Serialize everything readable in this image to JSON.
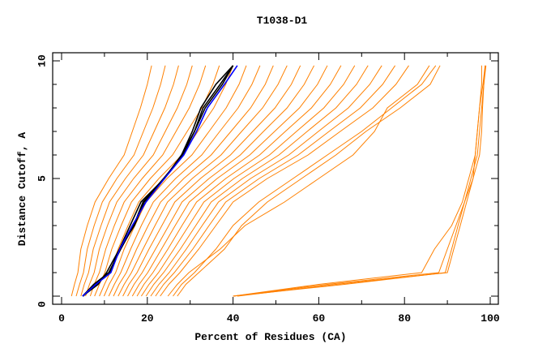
{
  "chart_data": {
    "type": "line",
    "title": "T1038-D1",
    "xlabel": "Percent of Residues (CA)",
    "ylabel": "Distance Cutoff, A",
    "xlim": [
      0,
      100
    ],
    "ylim": [
      0,
      10
    ],
    "xticks": [
      "0",
      "20",
      "40",
      "60",
      "80",
      "100"
    ],
    "yticks": [
      "0",
      "5",
      "10"
    ],
    "grid": false,
    "legend": "none",
    "colors": {
      "models": "#ff8000",
      "highlight_black": "#000000",
      "highlight_blue": "#0000ff"
    },
    "y": [
      0,
      0.5,
      1,
      2,
      3,
      4,
      5,
      6,
      7,
      8,
      9,
      9.8
    ],
    "series": [
      {
        "color": "#ff8000",
        "x": [
          2.3,
          3,
          3.8,
          4.5,
          6,
          7.8,
          11,
          14.6,
          16.5,
          18.4,
          20,
          21
        ]
      },
      {
        "color": "#ff8000",
        "x": [
          3.4,
          4.2,
          5.1,
          6.0,
          7.6,
          9.5,
          12.9,
          16.9,
          19.1,
          21.3,
          23.1,
          24.2
        ]
      },
      {
        "color": "#ff8000",
        "x": [
          4.5,
          5.3,
          6.3,
          7.4,
          9.2,
          11.2,
          14.9,
          19.1,
          21.6,
          24.1,
          26.1,
          27.3
        ]
      },
      {
        "color": "#ff8000",
        "x": [
          5.6,
          6.5,
          7.6,
          8.8,
          10.7,
          12.9,
          16.8,
          21.4,
          24.2,
          27,
          29.2,
          30.5
        ]
      },
      {
        "color": "#ff8000",
        "x": [
          6.7,
          7.6,
          8.8,
          10.3,
          12.3,
          14.6,
          18.8,
          23.6,
          26.7,
          29.8,
          32.2,
          33.6
        ]
      },
      {
        "color": "#ff8000",
        "x": [
          7.7,
          8.8,
          10.1,
          11.7,
          13.9,
          16.3,
          20.7,
          25.9,
          29.3,
          32.7,
          35.3,
          36.8
        ]
      },
      {
        "color": "#ff8000",
        "x": [
          8.8,
          10,
          11.3,
          13.2,
          15.5,
          18,
          22.7,
          28.1,
          31.8,
          35.5,
          38.3,
          40
        ]
      },
      {
        "color": "#ff8000",
        "x": [
          9.9,
          11.1,
          12.6,
          14.6,
          17.1,
          19.7,
          24.6,
          30.4,
          34.4,
          38.4,
          41.4,
          43.1
        ]
      },
      {
        "color": "#ff8000",
        "x": [
          11,
          12.3,
          13.8,
          16.1,
          18.6,
          21.4,
          26.6,
          32.7,
          36.9,
          41.2,
          44.4,
          46.3
        ]
      },
      {
        "color": "#ff8000",
        "x": [
          12.1,
          13.4,
          15.1,
          17.5,
          20.2,
          23.1,
          28.5,
          34.9,
          39.5,
          44.1,
          47.5,
          49.4
        ]
      },
      {
        "color": "#ff8000",
        "x": [
          13.2,
          14.6,
          16.3,
          19,
          21.8,
          24.7,
          30.5,
          37.2,
          42,
          46.9,
          50.5,
          52.6
        ]
      },
      {
        "color": "#ff8000",
        "x": [
          14.3,
          15.7,
          17.6,
          20.4,
          23.4,
          26.4,
          32.4,
          39.4,
          44.6,
          49.8,
          53.6,
          55.7
        ]
      },
      {
        "color": "#ff8000",
        "x": [
          15.4,
          16.9,
          18.8,
          21.9,
          25,
          28.1,
          34.4,
          41.7,
          47.1,
          52.6,
          56.6,
          58.9
        ]
      },
      {
        "color": "#ff8000",
        "x": [
          16.5,
          18.1,
          20.1,
          23.3,
          26.5,
          29.8,
          36.3,
          43.9,
          49.7,
          55.5,
          59.7,
          62
        ]
      },
      {
        "color": "#ff8000",
        "x": [
          17.6,
          19.2,
          21.3,
          24.8,
          28.1,
          31.5,
          38.3,
          46.2,
          52.2,
          58.3,
          62.7,
          65.2
        ]
      },
      {
        "color": "#ff8000",
        "x": [
          18.6,
          20.4,
          22.6,
          26.2,
          29.7,
          33.2,
          40.2,
          48.5,
          54.8,
          61.2,
          65.8,
          68.4
        ]
      },
      {
        "color": "#ff8000",
        "x": [
          19.7,
          21.5,
          23.8,
          27.7,
          31.3,
          34.9,
          42.2,
          50.7,
          57.3,
          64,
          68.8,
          71.5
        ]
      },
      {
        "color": "#ff8000",
        "x": [
          20.8,
          22.7,
          25.1,
          29.1,
          32.8,
          36.6,
          44.1,
          53,
          59.9,
          66.9,
          71.9,
          74.7
        ]
      },
      {
        "color": "#ff8000",
        "x": [
          21.9,
          23.8,
          26.3,
          30.6,
          34.4,
          38.3,
          46.1,
          55.2,
          62.4,
          69.7,
          74.9,
          77.8
        ]
      },
      {
        "color": "#ff8000",
        "x": [
          23,
          25,
          27.6,
          32,
          36,
          40,
          48,
          57.5,
          65,
          72.6,
          78,
          81
        ]
      },
      {
        "color": "#ff8000",
        "x": [
          24.8,
          27,
          29.7,
          37,
          42.8,
          52,
          60,
          68,
          73,
          76,
          83,
          85.8
        ]
      },
      {
        "color": "#ff8000",
        "x": [
          26,
          28,
          31,
          36,
          40,
          46,
          54,
          62,
          70,
          77,
          84,
          87.3
        ]
      },
      {
        "color": "#ff8000",
        "x": [
          27,
          29,
          32,
          38,
          42,
          48,
          56,
          64,
          71,
          79,
          86,
          88.3
        ]
      },
      {
        "color": "#ff8000",
        "x": [
          40,
          66,
          89.5,
          91,
          92.5,
          94,
          95.5,
          97,
          97.5,
          98,
          98.5,
          99
        ]
      },
      {
        "color": "#ff8000",
        "x": [
          40,
          62,
          88,
          90,
          92,
          94,
          96,
          97.5,
          98,
          98.2,
          98.5,
          98.8
        ]
      },
      {
        "color": "#ff8000",
        "x": [
          40,
          60,
          84,
          87,
          91,
          93.5,
          95,
          96.5,
          97,
          97.5,
          98,
          98
        ]
      },
      {
        "color": "#ff8000",
        "x": [
          41,
          64,
          90,
          91.5,
          93,
          94.5,
          96,
          96.5,
          97,
          97.5,
          98.3,
          98.8
        ]
      },
      {
        "color": "#000000",
        "x": [
          4.9,
          8.5,
          10.5,
          13.5,
          16,
          18.5,
          24,
          28,
          30.5,
          32.5,
          36,
          40
        ]
      },
      {
        "color": "#000000",
        "x": [
          4.9,
          7.5,
          11,
          13.8,
          16.8,
          19,
          23.8,
          28.3,
          31,
          33,
          37,
          40
        ]
      },
      {
        "color": "#000000",
        "x": [
          5,
          8,
          11.2,
          13.5,
          17,
          19.3,
          24,
          28,
          31,
          33.5,
          37.5,
          40
        ]
      },
      {
        "color": "#0000ff",
        "x": [
          4.9,
          8,
          11.5,
          13.6,
          16.5,
          19.7,
          24,
          28.5,
          31.5,
          34,
          38,
          41
        ]
      }
    ]
  }
}
